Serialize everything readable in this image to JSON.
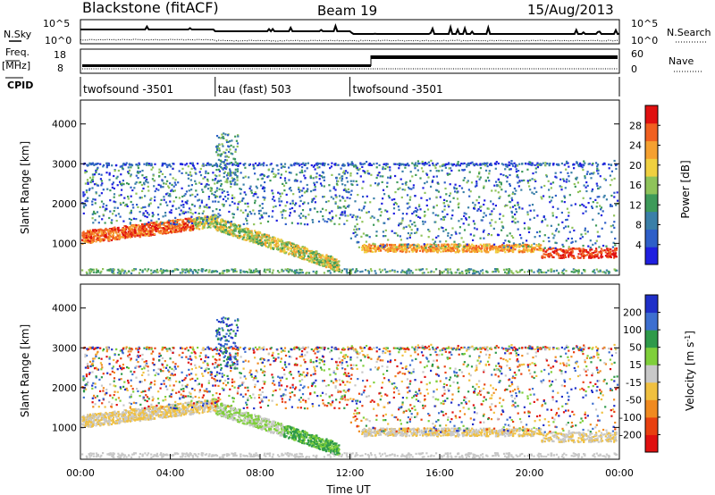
{
  "header": {
    "title": "Blackstone (fitACF)",
    "beam": "Beam 19",
    "date": "15/Aug/2013"
  },
  "labels": {
    "nsky": "N.Sky",
    "nsearch": "N.Search",
    "freq_top": "Freq.",
    "freq_unit": "[MHz]",
    "nave": "Nave",
    "cpid": "CPID",
    "noise_ticks_left": [
      "10^5",
      "10^0"
    ],
    "noise_ticks_right": [
      "10^5",
      "10^0"
    ],
    "freq_ticks": [
      "18",
      "8"
    ],
    "nave_ticks": [
      "60",
      "0"
    ]
  },
  "cpid_segments": [
    {
      "start": 0,
      "end": 6,
      "label": "twofsound -3501"
    },
    {
      "start": 6,
      "end": 12,
      "label": "tau (fast) 503"
    },
    {
      "start": 12,
      "end": 24,
      "label": "twofsound -3501"
    }
  ],
  "chart_data": [
    {
      "type": "heatmap",
      "panel": "power",
      "ylabel": "Slant Range [km]",
      "ylim": [
        200,
        4600
      ],
      "xlim": [
        0,
        24
      ],
      "yticks": [
        1000,
        2000,
        3000,
        4000
      ],
      "colorbar": {
        "label": "Power [dB]",
        "range": [
          0,
          32
        ],
        "ticks": [
          4,
          8,
          12,
          16,
          20,
          24,
          28
        ],
        "colors": [
          "#1f1fe0",
          "#2e5fc8",
          "#3a7fa8",
          "#3e9a5a",
          "#8fc35a",
          "#f0d040",
          "#f5a030",
          "#f06020",
          "#e01010"
        ]
      }
    },
    {
      "type": "heatmap",
      "panel": "velocity",
      "xlabel": "Time UT",
      "ylabel": "Slant Range [km]",
      "ylim": [
        200,
        4600
      ],
      "xlim": [
        0,
        24
      ],
      "yticks": [
        1000,
        2000,
        3000,
        4000
      ],
      "xticks": [
        "00:00",
        "04:00",
        "08:00",
        "12:00",
        "16:00",
        "20:00",
        "00:00"
      ],
      "colorbar": {
        "label": "Velocity [m s^-1]",
        "ticks": [
          200,
          100,
          50,
          15,
          -15,
          -50,
          -100,
          -200
        ],
        "colors": [
          "#1f2fc8",
          "#3d6fd0",
          "#2f9a4a",
          "#7fcf3a",
          "#c8c8c8",
          "#f0c040",
          "#f08a20",
          "#e84010",
          "#e01010"
        ]
      }
    }
  ]
}
